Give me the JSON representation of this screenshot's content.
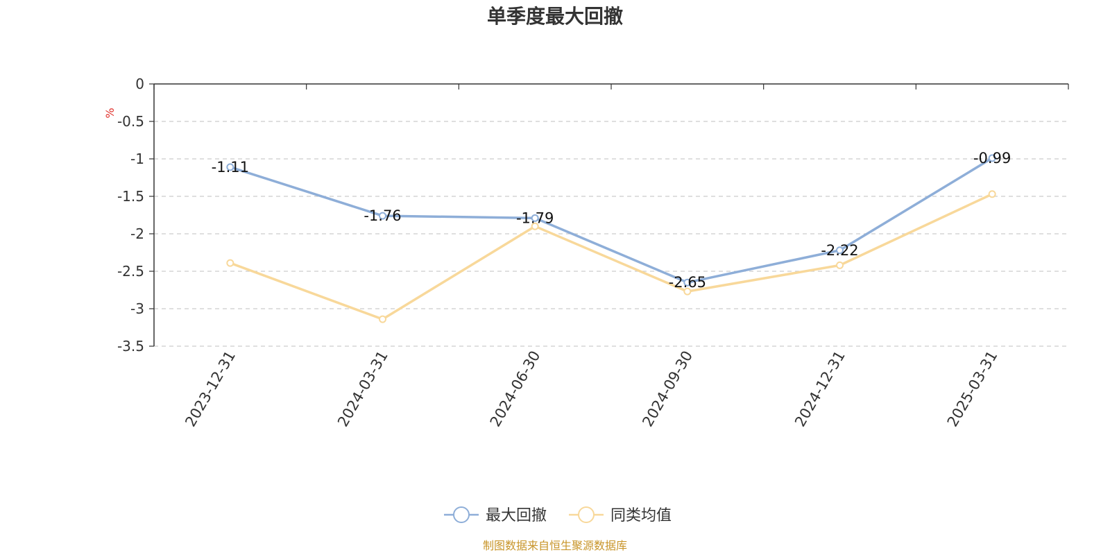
{
  "chart_data": {
    "type": "line",
    "title": "单季度最大回撤",
    "ylabel": "%",
    "categories": [
      "2023-12-31",
      "2024-03-31",
      "2024-06-30",
      "2024-09-30",
      "2024-12-31",
      "2025-03-31"
    ],
    "series": [
      {
        "name": "最大回撤",
        "color": "#8eaed8",
        "values": [
          -1.11,
          -1.76,
          -1.79,
          -2.65,
          -2.22,
          -0.99
        ],
        "show_labels": true
      },
      {
        "name": "同类均值",
        "color": "#f8d89a",
        "values": [
          -2.39,
          -3.14,
          -1.9,
          -2.77,
          -2.42,
          -1.47
        ],
        "show_labels": false
      }
    ],
    "ylim": [
      -3.5,
      0
    ],
    "yticks": [
      0,
      -0.5,
      -1,
      -1.5,
      -2,
      -2.5,
      -3,
      -3.5
    ],
    "grid": true,
    "legend_position": "bottom-center",
    "source": "制图数据来自恒生聚源数据库"
  }
}
